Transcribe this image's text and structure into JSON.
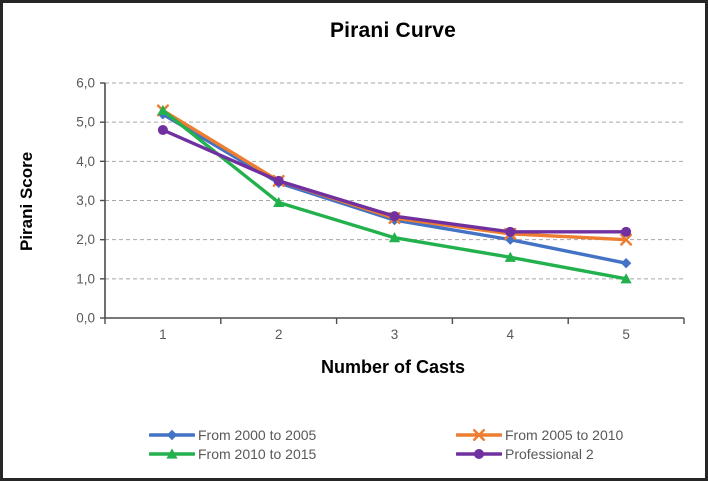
{
  "chart_data": {
    "type": "line",
    "title": "Pirani Curve",
    "xlabel": "Number of Casts",
    "ylabel": "Pirani Score",
    "x": [
      1,
      2,
      3,
      4,
      5
    ],
    "xtick_labels": [
      "1",
      "2",
      "3",
      "4",
      "5"
    ],
    "ytick_labels": [
      "0,0",
      "1,0",
      "2,0",
      "3,0",
      "4,0",
      "5,0",
      "6,0"
    ],
    "ylim": [
      0,
      6
    ],
    "grid": "horizontal dashed gridlines at each 1.0 step",
    "legend_position": "bottom, two columns",
    "series": [
      {
        "name": "From 2000 to 2005",
        "color": "#4472C4",
        "marker": "diamond",
        "values": [
          5.2,
          3.45,
          2.5,
          2.0,
          1.4
        ]
      },
      {
        "name": "From 2005 to 2010",
        "color": "#ED7D31",
        "marker": "x",
        "values": [
          5.3,
          3.5,
          2.55,
          2.15,
          2.0
        ]
      },
      {
        "name": "From 2010 to 2015",
        "color": "#22B14C",
        "marker": "triangle",
        "values": [
          5.3,
          2.95,
          2.05,
          1.55,
          1.0
        ]
      },
      {
        "name": "Professional 2",
        "color": "#7030A0",
        "marker": "circle",
        "values": [
          4.8,
          3.5,
          2.6,
          2.2,
          2.2
        ]
      }
    ],
    "colors": {
      "tick_text": "#595959",
      "grid": "#A6A6A6",
      "axis": "#4d4d4d",
      "title_text": "#000000",
      "frame_border": "#262626",
      "background": "#ffffff"
    }
  }
}
